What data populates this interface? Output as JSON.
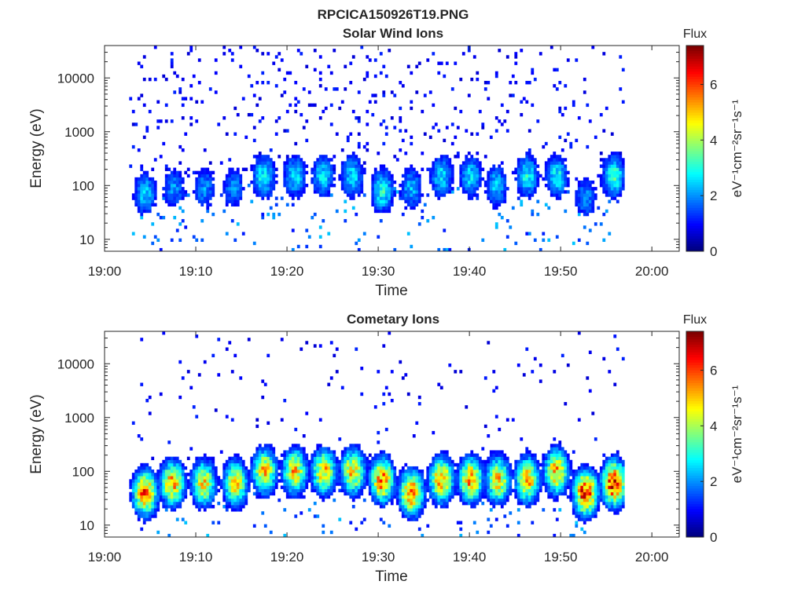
{
  "figure": {
    "title": "RPCICA150926T19.PNG"
  },
  "colormap": {
    "name": "jet",
    "stops": [
      "#00007f",
      "#0000ff",
      "#007fff",
      "#00ffff",
      "#7fff7f",
      "#ffff00",
      "#ff7f00",
      "#ff0000",
      "#7f0000"
    ]
  },
  "chart_data": [
    {
      "type": "heatmap",
      "title": "Solar Wind Ions",
      "xlabel": "Time",
      "ylabel": "Energy (eV)",
      "yscale": "log",
      "xlim_minutes": [
        0,
        63
      ],
      "ylim": [
        6,
        40000
      ],
      "xticks": [
        {
          "minute": 0,
          "label": "19:00"
        },
        {
          "minute": 10,
          "label": "19:10"
        },
        {
          "minute": 20,
          "label": "19:20"
        },
        {
          "minute": 30,
          "label": "19:30"
        },
        {
          "minute": 40,
          "label": "19:40"
        },
        {
          "minute": 50,
          "label": "19:50"
        },
        {
          "minute": 60,
          "label": "20:00"
        }
      ],
      "yticks": [
        {
          "value": 10,
          "label": "10"
        },
        {
          "value": 100,
          "label": "100"
        },
        {
          "value": 1000,
          "label": "1000"
        },
        {
          "value": 10000,
          "label": "10000"
        }
      ],
      "data_range_minutes": [
        2.7,
        57.0
      ],
      "bursts": [
        {
          "minute": 4.3,
          "peak_energy_eV": 70,
          "flux": 2.5
        },
        {
          "minute": 7.5,
          "peak_energy_eV": 90,
          "flux": 2.0
        },
        {
          "minute": 10.8,
          "peak_energy_eV": 90,
          "flux": 2.0
        },
        {
          "minute": 14.0,
          "peak_energy_eV": 90,
          "flux": 2.0
        },
        {
          "minute": 17.3,
          "peak_energy_eV": 150,
          "flux": 2.8
        },
        {
          "minute": 20.7,
          "peak_energy_eV": 150,
          "flux": 2.6
        },
        {
          "minute": 23.8,
          "peak_energy_eV": 150,
          "flux": 2.6
        },
        {
          "minute": 27.0,
          "peak_energy_eV": 150,
          "flux": 2.6
        },
        {
          "minute": 30.3,
          "peak_energy_eV": 80,
          "flux": 3.0
        },
        {
          "minute": 33.5,
          "peak_energy_eV": 90,
          "flux": 2.3
        },
        {
          "minute": 36.8,
          "peak_energy_eV": 150,
          "flux": 2.6
        },
        {
          "minute": 40.0,
          "peak_energy_eV": 150,
          "flux": 2.6
        },
        {
          "minute": 42.8,
          "peak_energy_eV": 100,
          "flux": 2.4
        },
        {
          "minute": 46.2,
          "peak_energy_eV": 150,
          "flux": 2.8
        },
        {
          "minute": 49.4,
          "peak_energy_eV": 150,
          "flux": 2.8
        },
        {
          "minute": 52.6,
          "peak_energy_eV": 60,
          "flux": 2.0
        },
        {
          "minute": 55.7,
          "peak_energy_eV": 150,
          "flux": 3.2
        }
      ],
      "colorbar": {
        "label": "Flux",
        "unit": "eV⁻¹cm⁻²sr⁻¹s⁻¹",
        "range": [
          0,
          7.4
        ],
        "ticks": [
          "0",
          "2",
          "4",
          "6"
        ]
      },
      "grid": false
    },
    {
      "type": "heatmap",
      "title": "Cometary Ions",
      "xlabel": "Time",
      "ylabel": "Energy (eV)",
      "yscale": "log",
      "xlim_minutes": [
        0,
        63
      ],
      "ylim": [
        6,
        40000
      ],
      "xticks": [
        {
          "minute": 0,
          "label": "19:00"
        },
        {
          "minute": 10,
          "label": "19:10"
        },
        {
          "minute": 20,
          "label": "19:20"
        },
        {
          "minute": 30,
          "label": "19:30"
        },
        {
          "minute": 40,
          "label": "19:40"
        },
        {
          "minute": 50,
          "label": "19:50"
        },
        {
          "minute": 60,
          "label": "20:00"
        }
      ],
      "yticks": [
        {
          "value": 10,
          "label": "10"
        },
        {
          "value": 100,
          "label": "100"
        },
        {
          "value": 1000,
          "label": "1000"
        },
        {
          "value": 10000,
          "label": "10000"
        }
      ],
      "data_range_minutes": [
        2.7,
        57.0
      ],
      "bursts": [
        {
          "minute": 4.3,
          "peak_energy_eV": 40,
          "flux": 5.8
        },
        {
          "minute": 7.3,
          "peak_energy_eV": 60,
          "flux": 5.2
        },
        {
          "minute": 10.7,
          "peak_energy_eV": 60,
          "flux": 4.8
        },
        {
          "minute": 14.2,
          "peak_energy_eV": 60,
          "flux": 4.8
        },
        {
          "minute": 17.4,
          "peak_energy_eV": 100,
          "flux": 5.0
        },
        {
          "minute": 20.7,
          "peak_energy_eV": 100,
          "flux": 5.0
        },
        {
          "minute": 23.9,
          "peak_energy_eV": 100,
          "flux": 5.0
        },
        {
          "minute": 27.1,
          "peak_energy_eV": 100,
          "flux": 5.0
        },
        {
          "minute": 30.3,
          "peak_energy_eV": 70,
          "flux": 5.6
        },
        {
          "minute": 33.5,
          "peak_energy_eV": 40,
          "flux": 5.8
        },
        {
          "minute": 36.8,
          "peak_energy_eV": 70,
          "flux": 5.4
        },
        {
          "minute": 40.0,
          "peak_energy_eV": 70,
          "flux": 5.4
        },
        {
          "minute": 43.0,
          "peak_energy_eV": 70,
          "flux": 5.0
        },
        {
          "minute": 46.2,
          "peak_energy_eV": 70,
          "flux": 5.2
        },
        {
          "minute": 49.4,
          "peak_energy_eV": 100,
          "flux": 5.2
        },
        {
          "minute": 52.6,
          "peak_energy_eV": 40,
          "flux": 6.4
        },
        {
          "minute": 55.7,
          "peak_energy_eV": 60,
          "flux": 6.6
        }
      ],
      "colorbar": {
        "label": "Flux",
        "unit": "eV⁻¹cm⁻²sr⁻¹s⁻¹",
        "range": [
          0,
          7.4
        ],
        "ticks": [
          "0",
          "2",
          "4",
          "6"
        ]
      },
      "grid": false
    }
  ]
}
